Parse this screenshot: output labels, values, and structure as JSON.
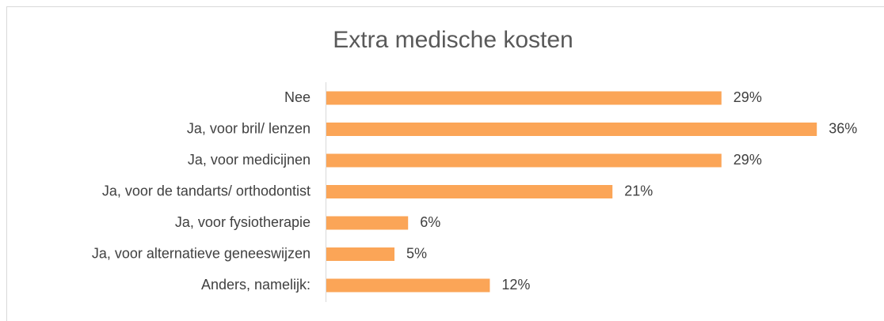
{
  "chart_data": {
    "type": "bar",
    "orientation": "horizontal",
    "title": "Extra medische kosten",
    "categories": [
      "Nee",
      "Ja, voor bril/ lenzen",
      "Ja, voor medicijnen",
      "Ja, voor de tandarts/ orthodontist",
      "Ja, voor fysiotherapie",
      "Ja, voor alternatieve geneeswijzen",
      "Anders, namelijk:"
    ],
    "values": [
      29,
      36,
      29,
      21,
      6,
      5,
      12
    ],
    "value_labels": [
      "29%",
      "36%",
      "29%",
      "21%",
      "6%",
      "5%",
      "12%"
    ],
    "color": "#fba557",
    "xlim": [
      0,
      40
    ]
  }
}
